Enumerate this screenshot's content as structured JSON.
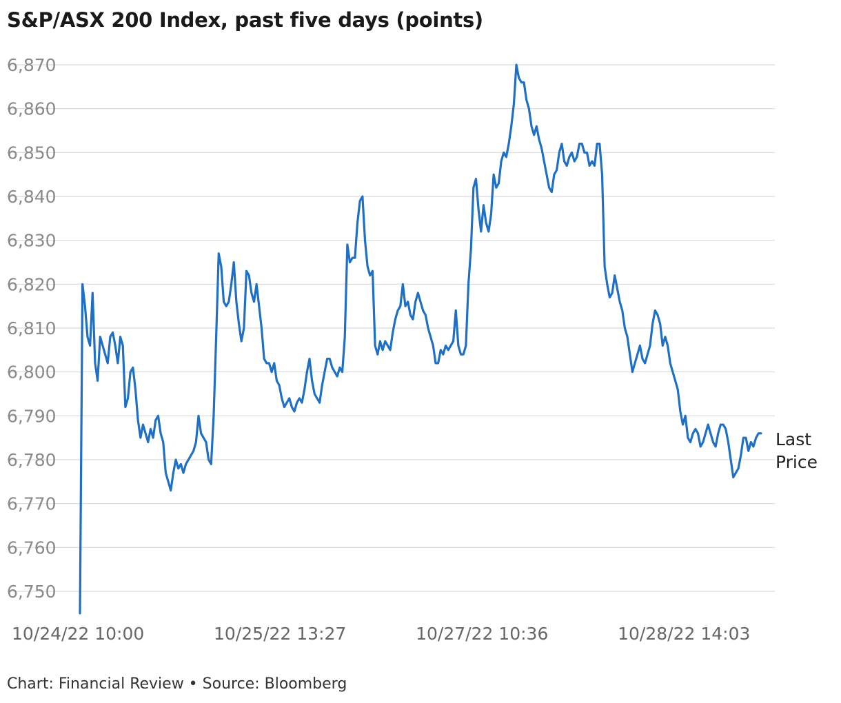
{
  "chart_data": {
    "type": "line",
    "title": "S&P/ASX 200 Index, past five days (points)",
    "source": "Chart: Financial Review • Source: Bloomberg",
    "last_label_line1": "Last",
    "last_label_line2": "Price",
    "line_color": "#1f6fc5",
    "ylim": [
      6745,
      6873
    ],
    "yticks": [
      6750,
      6760,
      6770,
      6780,
      6790,
      6800,
      6810,
      6820,
      6830,
      6840,
      6850,
      6860,
      6870
    ],
    "ytick_labels": [
      "6,750",
      "6,760",
      "6,770",
      "6,780",
      "6,790",
      "6,800",
      "6,810",
      "6,820",
      "6,830",
      "6,840",
      "6,850",
      "6,860",
      "6,870"
    ],
    "xtick_labels": [
      "10/24/22 10:00",
      "10/25/22 13:27",
      "10/27/22 10:36",
      "10/28/22 14:03"
    ],
    "xtick_positions": [
      0,
      0.3256,
      0.6512,
      0.9768
    ],
    "grid": true,
    "series": [
      {
        "values": [
          6745,
          6820,
          6815,
          6808,
          6806,
          6818,
          6802,
          6798,
          6808,
          6806,
          6804,
          6802,
          6808,
          6809,
          6806,
          6802,
          6808,
          6806,
          6792,
          6794,
          6800,
          6801,
          6796,
          6789,
          6785,
          6788,
          6786,
          6784,
          6787,
          6785,
          6789,
          6790,
          6786,
          6784,
          6777,
          6775,
          6773,
          6777,
          6780,
          6778,
          6779,
          6777,
          6779,
          6780,
          6781,
          6782,
          6784,
          6790,
          6786,
          6785,
          6784,
          6780,
          6779,
          6790,
          6808,
          6827,
          6824,
          6816,
          6815,
          6816,
          6820,
          6825,
          6816,
          6811,
          6807,
          6810,
          6823,
          6822,
          6818,
          6816,
          6820,
          6815,
          6810,
          6803,
          6802,
          6802,
          6800,
          6802,
          6798,
          6797,
          6794,
          6792,
          6793,
          6794,
          6792,
          6791,
          6793,
          6794,
          6793,
          6796,
          6800,
          6803,
          6798,
          6795,
          6794,
          6793,
          6797,
          6800,
          6803,
          6803,
          6801,
          6800,
          6799,
          6801,
          6800,
          6808,
          6829,
          6825,
          6826,
          6826,
          6834,
          6839,
          6840,
          6830,
          6824,
          6822,
          6823,
          6806,
          6804,
          6807,
          6805,
          6807,
          6806,
          6805,
          6809,
          6812,
          6814,
          6815,
          6820,
          6815,
          6816,
          6813,
          6812,
          6816,
          6818,
          6816,
          6814,
          6813,
          6810,
          6808,
          6806,
          6802,
          6802,
          6805,
          6804,
          6806,
          6805,
          6806,
          6807,
          6814,
          6806,
          6804,
          6804,
          6806,
          6820,
          6828,
          6842,
          6844,
          6837,
          6832,
          6838,
          6834,
          6832,
          6836,
          6845,
          6842,
          6843,
          6848,
          6850,
          6849,
          6852,
          6856,
          6861,
          6870,
          6867,
          6866,
          6866,
          6862,
          6860,
          6856,
          6854,
          6856,
          6853,
          6851,
          6848,
          6845,
          6842,
          6841,
          6845,
          6846,
          6850,
          6852,
          6848,
          6847,
          6849,
          6850,
          6848,
          6849,
          6852,
          6852,
          6850,
          6850,
          6847,
          6848,
          6847,
          6852,
          6852,
          6845,
          6824,
          6820,
          6817,
          6818,
          6822,
          6819,
          6816,
          6814,
          6810,
          6808,
          6804,
          6800,
          6802,
          6804,
          6806,
          6803,
          6802,
          6804,
          6806,
          6811,
          6814,
          6813,
          6811,
          6806,
          6808,
          6806,
          6802,
          6800,
          6798,
          6796,
          6791,
          6788,
          6790,
          6785,
          6784,
          6786,
          6787,
          6786,
          6783,
          6784,
          6786,
          6788,
          6786,
          6784,
          6783,
          6786,
          6788,
          6788,
          6787,
          6784,
          6780,
          6776,
          6777,
          6778,
          6781,
          6785,
          6785,
          6782,
          6784,
          6783,
          6785,
          6786,
          6786
        ]
      }
    ]
  }
}
